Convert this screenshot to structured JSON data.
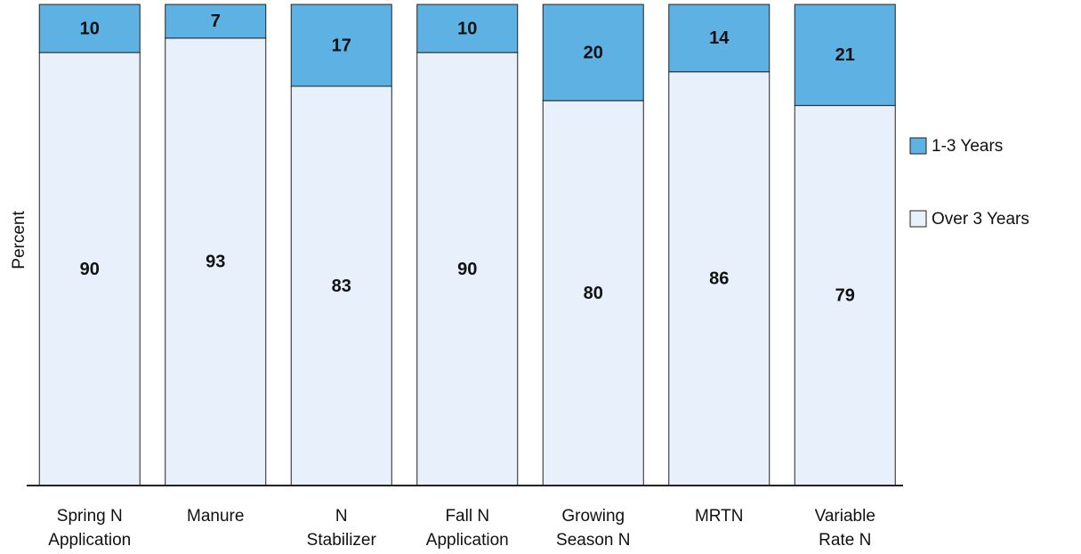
{
  "chart_data": {
    "type": "stacked_bar",
    "y_label": "Percent",
    "categories": [
      "Spring N\nApplication",
      "Manure",
      "N\nStabilizer",
      "Fall N\nApplication",
      "Growing\nSeason N",
      "MRTN",
      "Variable\nRate N"
    ],
    "series": [
      {
        "name": "Over 3 Years",
        "color": "#e8f1fb",
        "values": [
          90,
          93,
          83,
          90,
          80,
          86,
          79
        ]
      },
      {
        "name": "1-3 Years",
        "color": "#5eb1e3",
        "values": [
          10,
          7,
          17,
          10,
          20,
          14,
          21
        ]
      }
    ],
    "ylim": [
      0,
      100
    ],
    "legend": "right"
  }
}
